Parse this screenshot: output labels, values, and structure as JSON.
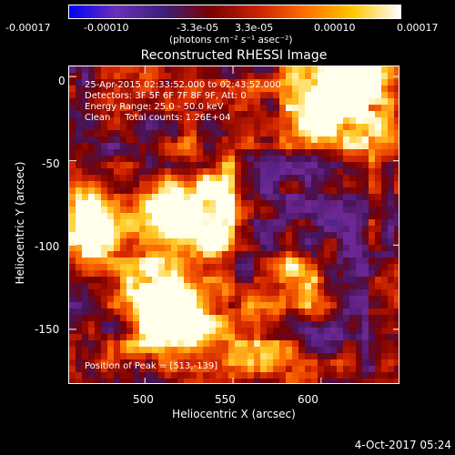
{
  "colorbar": {
    "ticks": [
      "-0.00017",
      "-0.00010",
      "-3.3e-05",
      "3.3e-05",
      "0.00010",
      "0.00017"
    ],
    "units": "(photons cm⁻² s⁻¹ asec⁻²)",
    "colormap": [
      "#0000ff",
      "#6b2fb8",
      "#3c1f7a",
      "#7a0000",
      "#cc2200",
      "#ff7000",
      "#ffc800",
      "#ffffff"
    ]
  },
  "chart_data": {
    "type": "heatmap",
    "title": "Reconstructed RHESSI Image",
    "xlabel": "Heliocentric X (arcsec)",
    "ylabel": "Heliocentric Y (arcsec)",
    "xlim": [
      457,
      645
    ],
    "ylim": [
      -183,
      6
    ],
    "xticks": [
      500,
      550,
      600
    ],
    "yticks": [
      0,
      -50,
      -100,
      -150
    ],
    "peak": {
      "x": 513,
      "y": -139
    }
  },
  "annotations": {
    "time_range": "25-Apr-2015 02:33:52.000 to 02:43:52.000",
    "detectors": "Detectors: 3F 5F 6F 7F 8F 9F, Att: 0",
    "energy_range": "Energy Range: 25.0 - 50.0 keV",
    "method": "Clean     Total counts: 1.26E+04",
    "peak_position": "Position of Peak = [513,-139]"
  },
  "timestamp": "4-Oct-2017 05:24"
}
